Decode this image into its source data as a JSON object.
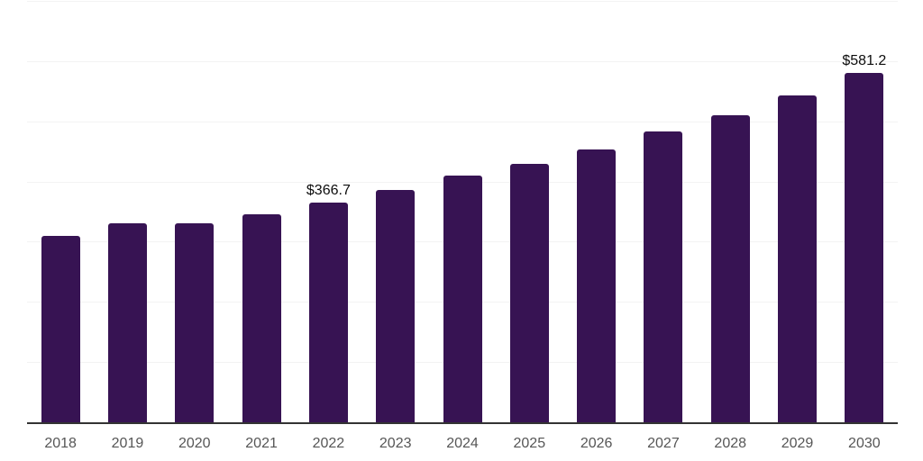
{
  "chart_data": {
    "type": "bar",
    "title": "",
    "xlabel": "",
    "ylabel": "",
    "categories": [
      "2018",
      "2019",
      "2020",
      "2021",
      "2022",
      "2023",
      "2024",
      "2025",
      "2026",
      "2027",
      "2028",
      "2029",
      "2030"
    ],
    "values": [
      310.8,
      332.7,
      331.8,
      347.5,
      366.7,
      387.1,
      410.8,
      431.5,
      455.2,
      484.9,
      512.0,
      545.2,
      581.2
    ],
    "currency_prefix": "$",
    "data_labels": [
      {
        "category": "2022",
        "text": "$366.7"
      },
      {
        "category": "2030",
        "text": "$581.2"
      }
    ],
    "ylim": [
      0,
      700
    ],
    "gridline_step": 100,
    "grid": true,
    "y_axis_labels_visible": false,
    "legend": "none",
    "bar_color": "#371353",
    "gridline_color": "#f3f3f3",
    "axis_line_color": "#333333",
    "tick_label_color": "#565656",
    "data_label_color": "#0d0d0d"
  }
}
